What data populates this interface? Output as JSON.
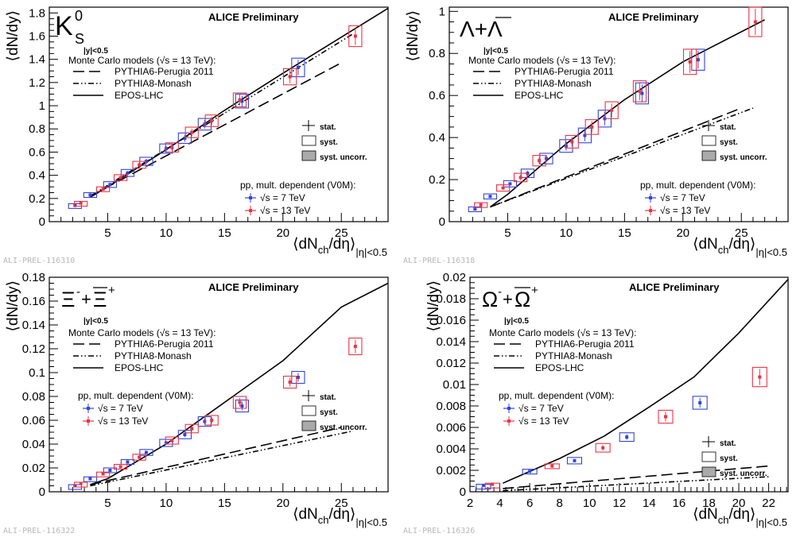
{
  "chart_data": [
    {
      "type": "scatter",
      "title": "ALICE Preliminary",
      "particle": {
        "base": "K",
        "sup": "0",
        "sub": "S",
        "style": "ks"
      },
      "rapidity": "|y|<0.5",
      "ylabel": "⟨dN/dy⟩",
      "xlabel": {
        "main": "⟨dN",
        "sub1": "ch",
        "mid": "/dη⟩",
        "sub2": "|η|<0.5"
      },
      "tag": "ALI-PREL-116310",
      "xlim": [
        0,
        29
      ],
      "ylim": [
        0,
        1.85
      ],
      "xticks": [
        5,
        10,
        15,
        20,
        25
      ],
      "yticks": [
        0,
        0.2,
        0.4,
        0.6,
        0.8,
        1,
        1.2,
        1.4,
        1.6,
        1.8
      ],
      "mc_header": "Monte Carlo models (√s = 13 TeV):",
      "models": [
        {
          "name": "PYTHIA6-Perugia 2011",
          "dash": "14,6",
          "x": [
            3.5,
            25
          ],
          "y": [
            0.22,
            1.37
          ]
        },
        {
          "name": "PYTHIA8-Monash",
          "dash": "7,3,1.5,3,1.5,3",
          "x": [
            3.5,
            26
          ],
          "y": [
            0.22,
            1.62
          ]
        },
        {
          "name": "EPOS-LHC",
          "dash": "",
          "x": [
            3.5,
            5,
            10,
            15,
            20,
            29
          ],
          "y": [
            0.21,
            0.3,
            0.62,
            0.96,
            1.28,
            1.84
          ]
        }
      ],
      "legend_unc": [
        "stat.",
        "syst.",
        "syst. uncorr."
      ],
      "pp_header": "pp, mult. dependent (V0M):",
      "series": [
        {
          "name": "√s = 7 TeV",
          "color": "#3344dd",
          "x": [
            2.2,
            3.5,
            5.2,
            6.7,
            8.3,
            10.0,
            11.6,
            13.3,
            16.5,
            21.3
          ],
          "y": [
            0.14,
            0.23,
            0.32,
            0.42,
            0.52,
            0.63,
            0.72,
            0.84,
            1.04,
            1.33
          ],
          "ey": [
            0.015,
            0.02,
            0.025,
            0.03,
            0.035,
            0.04,
            0.045,
            0.05,
            0.06,
            0.08
          ]
        },
        {
          "name": "√s = 13 TeV",
          "color": "#ee3344",
          "x": [
            2.7,
            4.6,
            6.1,
            7.7,
            10.5,
            12.2,
            13.9,
            16.3,
            20.6,
            26.2
          ],
          "y": [
            0.16,
            0.28,
            0.38,
            0.49,
            0.64,
            0.77,
            0.87,
            1.05,
            1.25,
            1.6
          ],
          "ey": [
            0.015,
            0.02,
            0.025,
            0.03,
            0.04,
            0.045,
            0.05,
            0.06,
            0.07,
            0.09
          ]
        }
      ]
    },
    {
      "type": "scatter",
      "title": "ALICE Preliminary",
      "particle": {
        "style": "lambda"
      },
      "rapidity": "|y|<0.5",
      "ylabel": "⟨dN/dy⟩",
      "xlabel": {
        "main": "⟨dN",
        "sub1": "ch",
        "mid": "/dη⟩",
        "sub2": "|η|<0.5"
      },
      "tag": "ALI-PREL-116318",
      "xlim": [
        0,
        29
      ],
      "ylim": [
        0,
        1.02
      ],
      "xticks": [
        5,
        10,
        15,
        20,
        25
      ],
      "yticks": [
        0,
        0.2,
        0.4,
        0.6,
        0.8,
        1
      ],
      "mc_header": "Monte Carlo models (√s = 13 TeV):",
      "models": [
        {
          "name": "PYTHIA6-Perugia 2011",
          "dash": "14,6",
          "x": [
            3.5,
            25
          ],
          "y": [
            0.07,
            0.54
          ]
        },
        {
          "name": "PYTHIA8-Monash",
          "dash": "7,3,1.5,3,1.5,3",
          "x": [
            3.5,
            26
          ],
          "y": [
            0.07,
            0.54
          ]
        },
        {
          "name": "EPOS-LHC",
          "dash": "",
          "x": [
            3.5,
            5,
            10,
            15,
            20,
            27
          ],
          "y": [
            0.07,
            0.13,
            0.37,
            0.58,
            0.76,
            0.96
          ]
        }
      ],
      "legend_unc": [
        "stat.",
        "syst.",
        "syst. uncorr."
      ],
      "pp_header": "pp, mult. dependent (V0M):",
      "series": [
        {
          "name": "√s = 7 TeV",
          "color": "#3344dd",
          "x": [
            2.2,
            3.5,
            5.2,
            6.7,
            8.3,
            10.0,
            11.6,
            13.3,
            16.5,
            21.3
          ],
          "y": [
            0.06,
            0.12,
            0.18,
            0.23,
            0.3,
            0.36,
            0.41,
            0.49,
            0.61,
            0.77
          ],
          "ey": [
            0.01,
            0.012,
            0.015,
            0.02,
            0.025,
            0.03,
            0.035,
            0.04,
            0.05,
            0.05
          ]
        },
        {
          "name": "√s = 13 TeV",
          "color": "#ee3344",
          "x": [
            2.7,
            4.6,
            6.1,
            7.7,
            10.5,
            12.2,
            13.9,
            16.3,
            20.6,
            26.2
          ],
          "y": [
            0.08,
            0.16,
            0.21,
            0.29,
            0.38,
            0.45,
            0.53,
            0.62,
            0.76,
            0.95
          ],
          "ey": [
            0.01,
            0.015,
            0.02,
            0.025,
            0.03,
            0.035,
            0.04,
            0.05,
            0.06,
            0.07
          ]
        }
      ]
    },
    {
      "type": "scatter",
      "title": "ALICE Preliminary",
      "particle": {
        "style": "xi"
      },
      "rapidity": "|y|<0.5",
      "ylabel": "⟨dN/dy⟩",
      "xlabel": {
        "main": "⟨dN",
        "sub1": "ch",
        "mid": "/dη⟩",
        "sub2": "|η|<0.5"
      },
      "tag": "ALI-PREL-116322",
      "xlim": [
        0,
        29
      ],
      "ylim": [
        0,
        0.18
      ],
      "xticks": [
        5,
        10,
        15,
        20,
        25
      ],
      "yticks": [
        0,
        0.02,
        0.04,
        0.06,
        0.08,
        0.1,
        0.12,
        0.14,
        0.16,
        0.18
      ],
      "mc_header": "Monte Carlo models (√s = 13 TeV):",
      "models": [
        {
          "name": "PYTHIA6-Perugia 2011",
          "dash": "14,6",
          "x": [
            3.5,
            25
          ],
          "y": [
            0.006,
            0.054
          ]
        },
        {
          "name": "PYTHIA8-Monash",
          "dash": "7,3,1.5,3,1.5,3",
          "x": [
            3.5,
            26
          ],
          "y": [
            0.005,
            0.051
          ]
        },
        {
          "name": "EPOS-LHC",
          "dash": "",
          "x": [
            3.5,
            5,
            10,
            15,
            20,
            25,
            29
          ],
          "y": [
            0.006,
            0.011,
            0.04,
            0.075,
            0.11,
            0.155,
            0.175
          ]
        }
      ],
      "legend_unc": [
        "stat.",
        "syst.",
        "syst. uncorr."
      ],
      "pp_header": "pp, mult. dependent (V0M):",
      "series": [
        {
          "name": "√s = 7 TeV",
          "color": "#3344dd",
          "x": [
            2.2,
            3.5,
            5.2,
            6.7,
            8.3,
            10.0,
            11.6,
            13.3,
            16.5,
            21.3
          ],
          "y": [
            0.005,
            0.011,
            0.018,
            0.025,
            0.033,
            0.041,
            0.048,
            0.059,
            0.072,
            0.096
          ],
          "ey": [
            0.001,
            0.0015,
            0.002,
            0.002,
            0.0025,
            0.003,
            0.0035,
            0.004,
            0.005,
            0.005
          ]
        },
        {
          "name": "√s = 13 TeV",
          "color": "#ee3344",
          "x": [
            2.7,
            4.6,
            6.1,
            7.7,
            10.5,
            12.2,
            13.9,
            16.3,
            20.6,
            26.2
          ],
          "y": [
            0.007,
            0.015,
            0.021,
            0.029,
            0.043,
            0.053,
            0.06,
            0.075,
            0.092,
            0.122
          ],
          "ey": [
            0.001,
            0.0015,
            0.002,
            0.0025,
            0.003,
            0.0035,
            0.004,
            0.005,
            0.005,
            0.007
          ]
        }
      ]
    },
    {
      "type": "scatter",
      "title": "ALICE Preliminary",
      "particle": {
        "style": "omega"
      },
      "rapidity": "|y|<0.5",
      "ylabel": "⟨dN/dy⟩",
      "xlabel": {
        "main": "⟨dN",
        "sub1": "ch",
        "mid": "/dη⟩",
        "sub2": "|η|<0.5"
      },
      "tag": "ALI-PREL-116326",
      "xlim": [
        2,
        23.3
      ],
      "ylim": [
        0,
        0.02
      ],
      "xticks": [
        2,
        4,
        6,
        8,
        10,
        12,
        14,
        16,
        18,
        20,
        22
      ],
      "yticks": [
        0,
        0.002,
        0.004,
        0.006,
        0.008,
        0.01,
        0.012,
        0.014,
        0.016,
        0.018,
        0.02
      ],
      "mc_header": "Monte Carlo models (√s = 13 TeV):",
      "models": [
        {
          "name": "PYTHIA6-Perugia 2011",
          "dash": "14,6",
          "x": [
            4.2,
            22
          ],
          "y": [
            0.0003,
            0.0024
          ]
        },
        {
          "name": "PYTHIA8-Monash",
          "dash": "7,3,1.5,3,1.5,3",
          "x": [
            4.2,
            22
          ],
          "y": [
            0.0001,
            0.0014
          ]
        },
        {
          "name": "EPOS-LHC",
          "dash": "",
          "x": [
            4.2,
            6,
            8,
            11,
            14,
            17,
            20,
            23.3
          ],
          "y": [
            0.0008,
            0.0019,
            0.0031,
            0.0052,
            0.0079,
            0.0107,
            0.0148,
            0.0198
          ]
        }
      ],
      "legend_unc": [
        "stat.",
        "syst.",
        "syst. uncorr."
      ],
      "pp_header": "pp, mult. dependent (V0M):",
      "series": [
        {
          "name": "√s = 7 TeV",
          "color": "#3344dd",
          "x": [
            2.9,
            6.0,
            9.0,
            12.5,
            17.4
          ],
          "y": [
            0.0006,
            0.0019,
            0.0029,
            0.0051,
            0.0083
          ],
          "ey": [
            0.0001,
            0.0002,
            0.0003,
            0.0004,
            0.0006
          ]
        },
        {
          "name": "√s = 13 TeV",
          "color": "#ee3344",
          "x": [
            3.5,
            7.5,
            10.9,
            15.1,
            21.4
          ],
          "y": [
            0.0007,
            0.0024,
            0.0041,
            0.007,
            0.0107
          ],
          "ey": [
            0.0001,
            0.0002,
            0.0004,
            0.0006,
            0.0009
          ]
        }
      ]
    }
  ]
}
